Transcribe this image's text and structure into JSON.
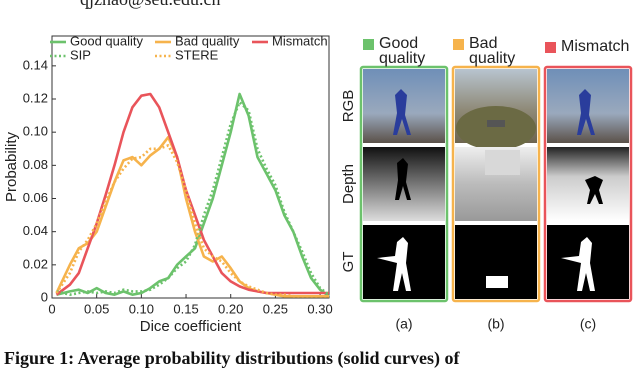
{
  "header_text": "qjzhao@seu.edu.cn",
  "chart_data": {
    "type": "line",
    "x_label": "Dice coefficient",
    "y_label": "Probability",
    "x": [
      0.005,
      0.02,
      0.03,
      0.04,
      0.05,
      0.06,
      0.07,
      0.08,
      0.09,
      0.1,
      0.11,
      0.12,
      0.13,
      0.14,
      0.15,
      0.16,
      0.17,
      0.18,
      0.19,
      0.2,
      0.21,
      0.22,
      0.23,
      0.24,
      0.25,
      0.26,
      0.27,
      0.28,
      0.29,
      0.3,
      0.31
    ],
    "series": [
      {
        "name": "Good quality",
        "color": "#6cc26c",
        "style": "solid",
        "values": [
          0.002,
          0.004,
          0.005,
          0.003,
          0.006,
          0.003,
          0.002,
          0.004,
          0.002,
          0.003,
          0.006,
          0.01,
          0.012,
          0.02,
          0.025,
          0.03,
          0.045,
          0.06,
          0.08,
          0.1,
          0.123,
          0.11,
          0.085,
          0.075,
          0.065,
          0.05,
          0.04,
          0.025,
          0.012,
          0.005,
          0.001
        ]
      },
      {
        "name": "Bad quality",
        "color": "#f6b34c",
        "style": "solid",
        "values": [
          0.003,
          0.02,
          0.03,
          0.033,
          0.04,
          0.055,
          0.07,
          0.083,
          0.085,
          0.08,
          0.086,
          0.09,
          0.097,
          0.085,
          0.06,
          0.04,
          0.025,
          0.022,
          0.025,
          0.018,
          0.01,
          0.006,
          0.004,
          0.003,
          0.002,
          0.001,
          0.001,
          0.001,
          0.001,
          0.001,
          0.001
        ]
      },
      {
        "name": "Mismatch",
        "color": "#e9545a",
        "style": "solid",
        "values": [
          0.002,
          0.008,
          0.015,
          0.03,
          0.045,
          0.062,
          0.08,
          0.1,
          0.115,
          0.122,
          0.123,
          0.115,
          0.1,
          0.085,
          0.065,
          0.05,
          0.035,
          0.025,
          0.015,
          0.01,
          0.007,
          0.005,
          0.004,
          0.003,
          0.003,
          0.003,
          0.003,
          0.003,
          0.003,
          0.003,
          0.003
        ]
      },
      {
        "name": "SIP",
        "color": "#6cc26c",
        "style": "dotted",
        "values": [
          0.004,
          0.002,
          0.003,
          0.004,
          0.003,
          0.004,
          0.003,
          0.005,
          0.004,
          0.004,
          0.005,
          0.008,
          0.012,
          0.018,
          0.022,
          0.032,
          0.05,
          0.065,
          0.085,
          0.105,
          0.118,
          0.113,
          0.09,
          0.078,
          0.068,
          0.052,
          0.04,
          0.028,
          0.015,
          0.006,
          0.002
        ]
      },
      {
        "name": "STERE",
        "color": "#f6b34c",
        "style": "dotted",
        "values": [
          0.003,
          0.015,
          0.028,
          0.035,
          0.045,
          0.058,
          0.07,
          0.078,
          0.084,
          0.085,
          0.09,
          0.09,
          0.092,
          0.082,
          0.065,
          0.045,
          0.03,
          0.025,
          0.022,
          0.015,
          0.01,
          0.007,
          0.005,
          0.003,
          0.002,
          0.002,
          0.001,
          0.001,
          0.001,
          0.001,
          0.001
        ]
      }
    ],
    "xlim": [
      0,
      0.31
    ],
    "ylim": [
      0,
      0.158
    ],
    "xticks": [
      0,
      0.05,
      {
        "value": 0.1,
        "label": "0.10"
      },
      0.15,
      {
        "value": 0.2,
        "label": "0.20"
      },
      0.25,
      {
        "value": 0.3,
        "label": "0.30"
      }
    ],
    "yticks": [
      0,
      0.02,
      0.04,
      0.06,
      0.08,
      {
        "value": 0.1,
        "label": "0.10"
      },
      0.12,
      0.14
    ],
    "grid": false,
    "legend": "top"
  },
  "panels": {
    "rows": [
      "RGB",
      "Depth",
      "GT"
    ],
    "columns": [
      {
        "label": "Good quality",
        "tag": "(a)",
        "color": "#6cc26c"
      },
      {
        "label": "Bad quality",
        "tag": "(b)",
        "color": "#f6b34c"
      },
      {
        "label": "Mismatch",
        "tag": "(c)",
        "color": "#e9545a"
      }
    ]
  },
  "caption": "Figure 1: Average probability distributions (solid curves) of"
}
